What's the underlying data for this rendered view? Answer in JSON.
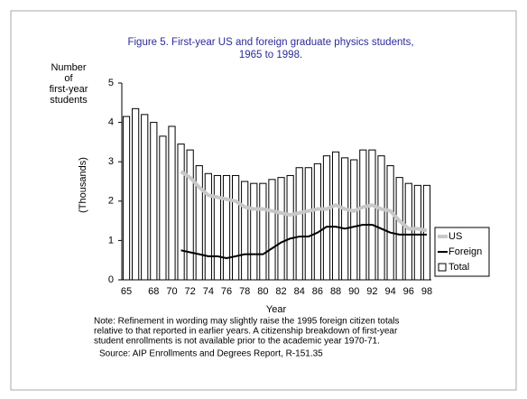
{
  "chart_data": {
    "type": "combo",
    "title": [
      "Figure 5.  First-year US and foreign graduate physics students,",
      "1965 to 1998."
    ],
    "y_label_top": [
      "Number",
      "of",
      "first-year",
      "students"
    ],
    "y_label": "(Thousands)",
    "x_label": "Year",
    "categories": [
      "65",
      null,
      null,
      "68",
      null,
      "70",
      null,
      "72",
      null,
      "74",
      null,
      "76",
      null,
      "78",
      null,
      "80",
      null,
      "82",
      null,
      "84",
      null,
      "86",
      null,
      "88",
      null,
      "90",
      null,
      "92",
      null,
      "94",
      null,
      "96",
      null,
      "98"
    ],
    "series": [
      {
        "name": "US",
        "kind": "line",
        "color": "#c8c8c8",
        "values": [
          null,
          null,
          null,
          null,
          null,
          null,
          2.75,
          2.6,
          2.35,
          2.15,
          2.1,
          2.05,
          2.0,
          1.85,
          1.8,
          1.8,
          1.75,
          1.7,
          1.65,
          1.7,
          1.75,
          1.8,
          1.8,
          1.9,
          1.8,
          1.75,
          1.85,
          1.9,
          1.8,
          1.75,
          1.5,
          1.3,
          1.3,
          1.25
        ]
      },
      {
        "name": "Foreign",
        "kind": "line",
        "color": "#000000",
        "values": [
          null,
          null,
          null,
          null,
          null,
          null,
          0.75,
          0.7,
          0.65,
          0.6,
          0.6,
          0.55,
          0.6,
          0.65,
          0.65,
          0.65,
          0.8,
          0.95,
          1.05,
          1.1,
          1.1,
          1.2,
          1.35,
          1.35,
          1.3,
          1.35,
          1.4,
          1.4,
          1.3,
          1.2,
          1.15,
          1.15,
          1.15,
          1.15
        ]
      },
      {
        "name": "Total",
        "kind": "bar",
        "color": "#ffffff",
        "values": [
          4.15,
          4.35,
          4.2,
          4.0,
          3.65,
          3.9,
          3.45,
          3.3,
          2.9,
          2.7,
          2.65,
          2.65,
          2.65,
          2.5,
          2.45,
          2.45,
          2.55,
          2.6,
          2.65,
          2.85,
          2.85,
          2.95,
          3.15,
          3.25,
          3.1,
          3.05,
          3.3,
          3.3,
          3.15,
          2.9,
          2.6,
          2.45,
          2.4,
          2.4
        ]
      }
    ],
    "ylim": [
      0,
      5
    ],
    "yticks": [
      0,
      1,
      2,
      3,
      4,
      5
    ],
    "legend": "right",
    "note": [
      "Note: Refinement in wording may slightly raise the 1995 foreign citizen totals",
      "relative to that reported in earlier years.  A citizenship breakdown of first-year",
      "student enrollments is not available prior to the academic year 1970-71."
    ],
    "source": "Source: AIP Enrollments and Degrees Report, R-151.35"
  }
}
